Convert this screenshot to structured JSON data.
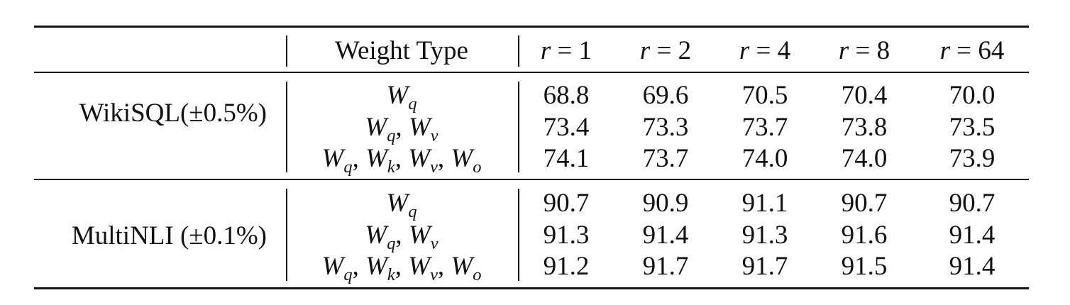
{
  "table": {
    "header": {
      "weight_type_label": "Weight Type",
      "rank_columns": [
        {
          "var": "r",
          "value": "1"
        },
        {
          "var": "r",
          "value": "2"
        },
        {
          "var": "r",
          "value": "4"
        },
        {
          "var": "r",
          "value": "8"
        },
        {
          "var": "r",
          "value": "64"
        }
      ]
    },
    "groups": [
      {
        "label": "WikiSQL(±0.5%)",
        "rows": [
          {
            "weights": [
              "q"
            ],
            "values": [
              "68.8",
              "69.6",
              "70.5",
              "70.4",
              "70.0"
            ]
          },
          {
            "weights": [
              "q",
              "v"
            ],
            "values": [
              "73.4",
              "73.3",
              "73.7",
              "73.8",
              "73.5"
            ]
          },
          {
            "weights": [
              "q",
              "k",
              "v",
              "o"
            ],
            "values": [
              "74.1",
              "73.7",
              "74.0",
              "74.0",
              "73.9"
            ]
          }
        ]
      },
      {
        "label": "MultiNLI (±0.1%)",
        "rows": [
          {
            "weights": [
              "q"
            ],
            "values": [
              "90.7",
              "90.9",
              "91.1",
              "90.7",
              "90.7"
            ]
          },
          {
            "weights": [
              "q",
              "v"
            ],
            "values": [
              "91.3",
              "91.4",
              "91.3",
              "91.6",
              "91.4"
            ]
          },
          {
            "weights": [
              "q",
              "k",
              "v",
              "o"
            ],
            "values": [
              "91.2",
              "91.7",
              "91.7",
              "91.5",
              "91.4"
            ]
          }
        ]
      }
    ]
  }
}
